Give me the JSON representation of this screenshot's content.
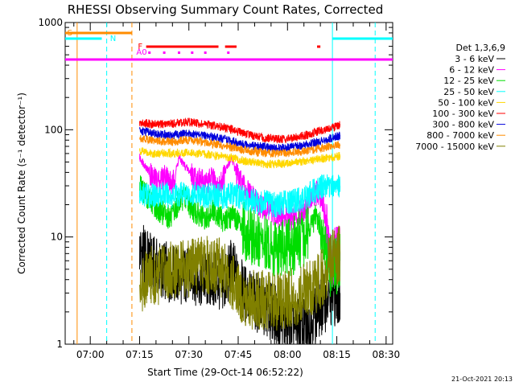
{
  "chart_data": {
    "type": "line",
    "title": "RHESSI Observing Summary Count Rates, Corrected",
    "xlabel": "Start Time (29-Oct-14 06:52:22)",
    "ylabel": "Corrected Count Rate (s⁻¹ detector⁻¹)",
    "x_axis": {
      "unit": "time",
      "range": [
        "06:52:22",
        "08:32:00"
      ],
      "ticks": [
        "07:00",
        "07:15",
        "07:30",
        "07:45",
        "08:00",
        "08:15",
        "08:30"
      ]
    },
    "y_axis": {
      "scale": "log",
      "range": [
        1,
        1000
      ],
      "ticks": [
        "1",
        "10",
        "100",
        "1000"
      ]
    },
    "grid": false,
    "legend": {
      "placement": "right",
      "title": "Det 1,3,6,9"
    },
    "series": [
      {
        "name": "3 - 6 keV",
        "color": "#000000",
        "x": [
          "07:15",
          "07:17",
          "07:19",
          "07:21",
          "07:23",
          "07:25",
          "07:27",
          "07:29",
          "07:31",
          "07:33",
          "07:35",
          "07:37",
          "07:39",
          "07:41",
          "07:43",
          "07:45",
          "07:47",
          "07:49",
          "07:51",
          "07:53",
          "07:55",
          "07:57",
          "07:59",
          "08:01",
          "08:03",
          "08:05",
          "08:07",
          "08:09",
          "08:11",
          "08:13",
          "08:15",
          "08:16"
        ],
        "y": [
          7.5,
          6.5,
          5.5,
          5.0,
          4.8,
          4.5,
          4.3,
          4.4,
          4.5,
          4.2,
          4.0,
          3.9,
          3.8,
          3.6,
          5.5,
          3.6,
          3.0,
          2.7,
          2.4,
          2.2,
          2.0,
          1.8,
          1.6,
          1.5,
          1.4,
          1.4,
          1.6,
          2.0,
          2.4,
          2.6,
          2.8,
          3.0
        ]
      },
      {
        "name": "6 - 12 keV",
        "color": "#ff00ff",
        "x": [
          "07:15",
          "07:17",
          "07:19",
          "07:21",
          "07:23",
          "07:25",
          "07:27",
          "07:29",
          "07:31",
          "07:33",
          "07:35",
          "07:37",
          "07:39",
          "07:41",
          "07:43",
          "07:45",
          "07:47",
          "07:49",
          "07:51",
          "07:53",
          "07:55",
          "07:57",
          "07:59",
          "08:01",
          "08:03",
          "08:05",
          "08:07",
          "08:09",
          "08:11",
          "08:13",
          "08:15",
          "08:16"
        ],
        "y": [
          55,
          45,
          35,
          33,
          38,
          30,
          55,
          45,
          38,
          34,
          32,
          35,
          28,
          40,
          55,
          35,
          28,
          24,
          20,
          18,
          17,
          16,
          15,
          15,
          16,
          18,
          22,
          26,
          20,
          6,
          7,
          7
        ]
      },
      {
        "name": "12 - 25 keV",
        "color": "#00dd00",
        "x": [
          "07:15",
          "07:17",
          "07:19",
          "07:21",
          "07:23",
          "07:25",
          "07:27",
          "07:29",
          "07:31",
          "07:33",
          "07:35",
          "07:37",
          "07:39",
          "07:41",
          "07:43",
          "07:45",
          "07:47",
          "07:49",
          "07:51",
          "07:53",
          "07:55",
          "07:57",
          "07:59",
          "08:01",
          "08:03",
          "08:05",
          "08:07",
          "08:09",
          "08:11",
          "08:13",
          "08:15",
          "08:16"
        ],
        "y": [
          30,
          25,
          20,
          18,
          16,
          15,
          22,
          24,
          18,
          16,
          14,
          18,
          16,
          14,
          16,
          14,
          11,
          10,
          9,
          8.5,
          8,
          7.5,
          8,
          8,
          9,
          10,
          13,
          16,
          8,
          5,
          5.5,
          6
        ]
      },
      {
        "name": "25 - 50 keV",
        "color": "#00ffff",
        "x": [
          "07:15",
          "07:17",
          "07:19",
          "07:21",
          "07:23",
          "07:25",
          "07:27",
          "07:29",
          "07:31",
          "07:33",
          "07:35",
          "07:37",
          "07:39",
          "07:41",
          "07:43",
          "07:45",
          "07:47",
          "07:49",
          "07:51",
          "07:53",
          "07:55",
          "07:57",
          "07:59",
          "08:01",
          "08:03",
          "08:05",
          "08:07",
          "08:09",
          "08:11",
          "08:13",
          "08:15",
          "08:16"
        ],
        "y": [
          25,
          25,
          24,
          25,
          25,
          24,
          25,
          26,
          25,
          25,
          24,
          25,
          24,
          24,
          25,
          24,
          23,
          22,
          21,
          21,
          20,
          20,
          21,
          21,
          22,
          23,
          25,
          28,
          30,
          30,
          30,
          30
        ]
      },
      {
        "name": "50 - 100 keV",
        "color": "#ffd700",
        "x": [
          "07:15",
          "07:17",
          "07:19",
          "07:21",
          "07:23",
          "07:25",
          "07:27",
          "07:29",
          "07:31",
          "07:33",
          "07:35",
          "07:37",
          "07:39",
          "07:41",
          "07:43",
          "07:45",
          "07:47",
          "07:49",
          "07:51",
          "07:53",
          "07:55",
          "07:57",
          "07:59",
          "08:01",
          "08:03",
          "08:05",
          "08:07",
          "08:09",
          "08:11",
          "08:13",
          "08:15",
          "08:16"
        ],
        "y": [
          63,
          62,
          60,
          60,
          61,
          60,
          61,
          62,
          61,
          60,
          59,
          58,
          57,
          56,
          55,
          53,
          51,
          50,
          49,
          48,
          48,
          48,
          48,
          49,
          50,
          51,
          52,
          53,
          54,
          55,
          56,
          57
        ]
      },
      {
        "name": "100 - 300 keV",
        "color": "#ff0000",
        "x": [
          "07:15",
          "07:17",
          "07:19",
          "07:21",
          "07:23",
          "07:25",
          "07:27",
          "07:29",
          "07:31",
          "07:33",
          "07:35",
          "07:37",
          "07:39",
          "07:41",
          "07:43",
          "07:45",
          "07:47",
          "07:49",
          "07:51",
          "07:53",
          "07:55",
          "07:57",
          "07:59",
          "08:01",
          "08:03",
          "08:05",
          "08:07",
          "08:09",
          "08:11",
          "08:13",
          "08:15",
          "08:16"
        ],
        "y": [
          115,
          115,
          113,
          112,
          113,
          114,
          116,
          118,
          117,
          114,
          112,
          110,
          108,
          104,
          100,
          96,
          92,
          89,
          86,
          84,
          83,
          82,
          82,
          83,
          85,
          88,
          92,
          96,
          100,
          104,
          108,
          112
        ]
      },
      {
        "name": "300 - 800 keV",
        "color": "#0000dd",
        "x": [
          "07:15",
          "07:17",
          "07:19",
          "07:21",
          "07:23",
          "07:25",
          "07:27",
          "07:29",
          "07:31",
          "07:33",
          "07:35",
          "07:37",
          "07:39",
          "07:41",
          "07:43",
          "07:45",
          "07:47",
          "07:49",
          "07:51",
          "07:53",
          "07:55",
          "07:57",
          "07:59",
          "08:01",
          "08:03",
          "08:05",
          "08:07",
          "08:09",
          "08:11",
          "08:13",
          "08:15",
          "08:16"
        ],
        "y": [
          98,
          96,
          92,
          90,
          90,
          89,
          91,
          92,
          92,
          90,
          88,
          86,
          84,
          81,
          78,
          75,
          73,
          71,
          70,
          69,
          68,
          68,
          68,
          69,
          70,
          72,
          74,
          77,
          80,
          83,
          86,
          88
        ]
      },
      {
        "name": "800 - 7000 keV",
        "color": "#ff8c00",
        "x": [
          "07:15",
          "07:17",
          "07:19",
          "07:21",
          "07:23",
          "07:25",
          "07:27",
          "07:29",
          "07:31",
          "07:33",
          "07:35",
          "07:37",
          "07:39",
          "07:41",
          "07:43",
          "07:45",
          "07:47",
          "07:49",
          "07:51",
          "07:53",
          "07:55",
          "07:57",
          "07:59",
          "08:01",
          "08:03",
          "08:05",
          "08:07",
          "08:09",
          "08:11",
          "08:13",
          "08:15",
          "08:16"
        ],
        "y": [
          84,
          82,
          80,
          78,
          78,
          77,
          79,
          80,
          79,
          78,
          76,
          74,
          72,
          70,
          68,
          66,
          64,
          63,
          62,
          61,
          60,
          60,
          60,
          61,
          62,
          63,
          64,
          66,
          68,
          70,
          72,
          73
        ]
      },
      {
        "name": "7000 - 15000 keV",
        "color": "#808000",
        "x": [
          "07:15",
          "07:17",
          "07:19",
          "07:21",
          "07:23",
          "07:25",
          "07:27",
          "07:29",
          "07:31",
          "07:33",
          "07:35",
          "07:37",
          "07:39",
          "07:41",
          "07:43",
          "07:45",
          "07:47",
          "07:49",
          "07:51",
          "07:53",
          "07:55",
          "07:57",
          "07:59",
          "08:01",
          "08:03",
          "08:05",
          "08:07",
          "08:09",
          "08:11",
          "08:13",
          "08:15",
          "08:16"
        ],
        "y": [
          3.5,
          4.0,
          4.5,
          4.2,
          4.8,
          5.0,
          5.2,
          5.0,
          5.2,
          5.3,
          5.5,
          5.4,
          5.3,
          5.0,
          4.0,
          3.0,
          2.8,
          2.6,
          2.6,
          2.6,
          2.5,
          2.5,
          2.6,
          2.7,
          2.8,
          3.0,
          3.3,
          3.6,
          4.5,
          6.0,
          6.5,
          7.0
        ]
      }
    ],
    "annotations": {
      "S": {
        "color": "#ff8c00"
      },
      "N": {
        "color": "#00ffff"
      },
      "F": {
        "color": "#ff0000"
      },
      "AO": {
        "label": "A0",
        "color": "#ff00ff"
      }
    },
    "timestamp": "21-Oct-2021 20:13"
  }
}
